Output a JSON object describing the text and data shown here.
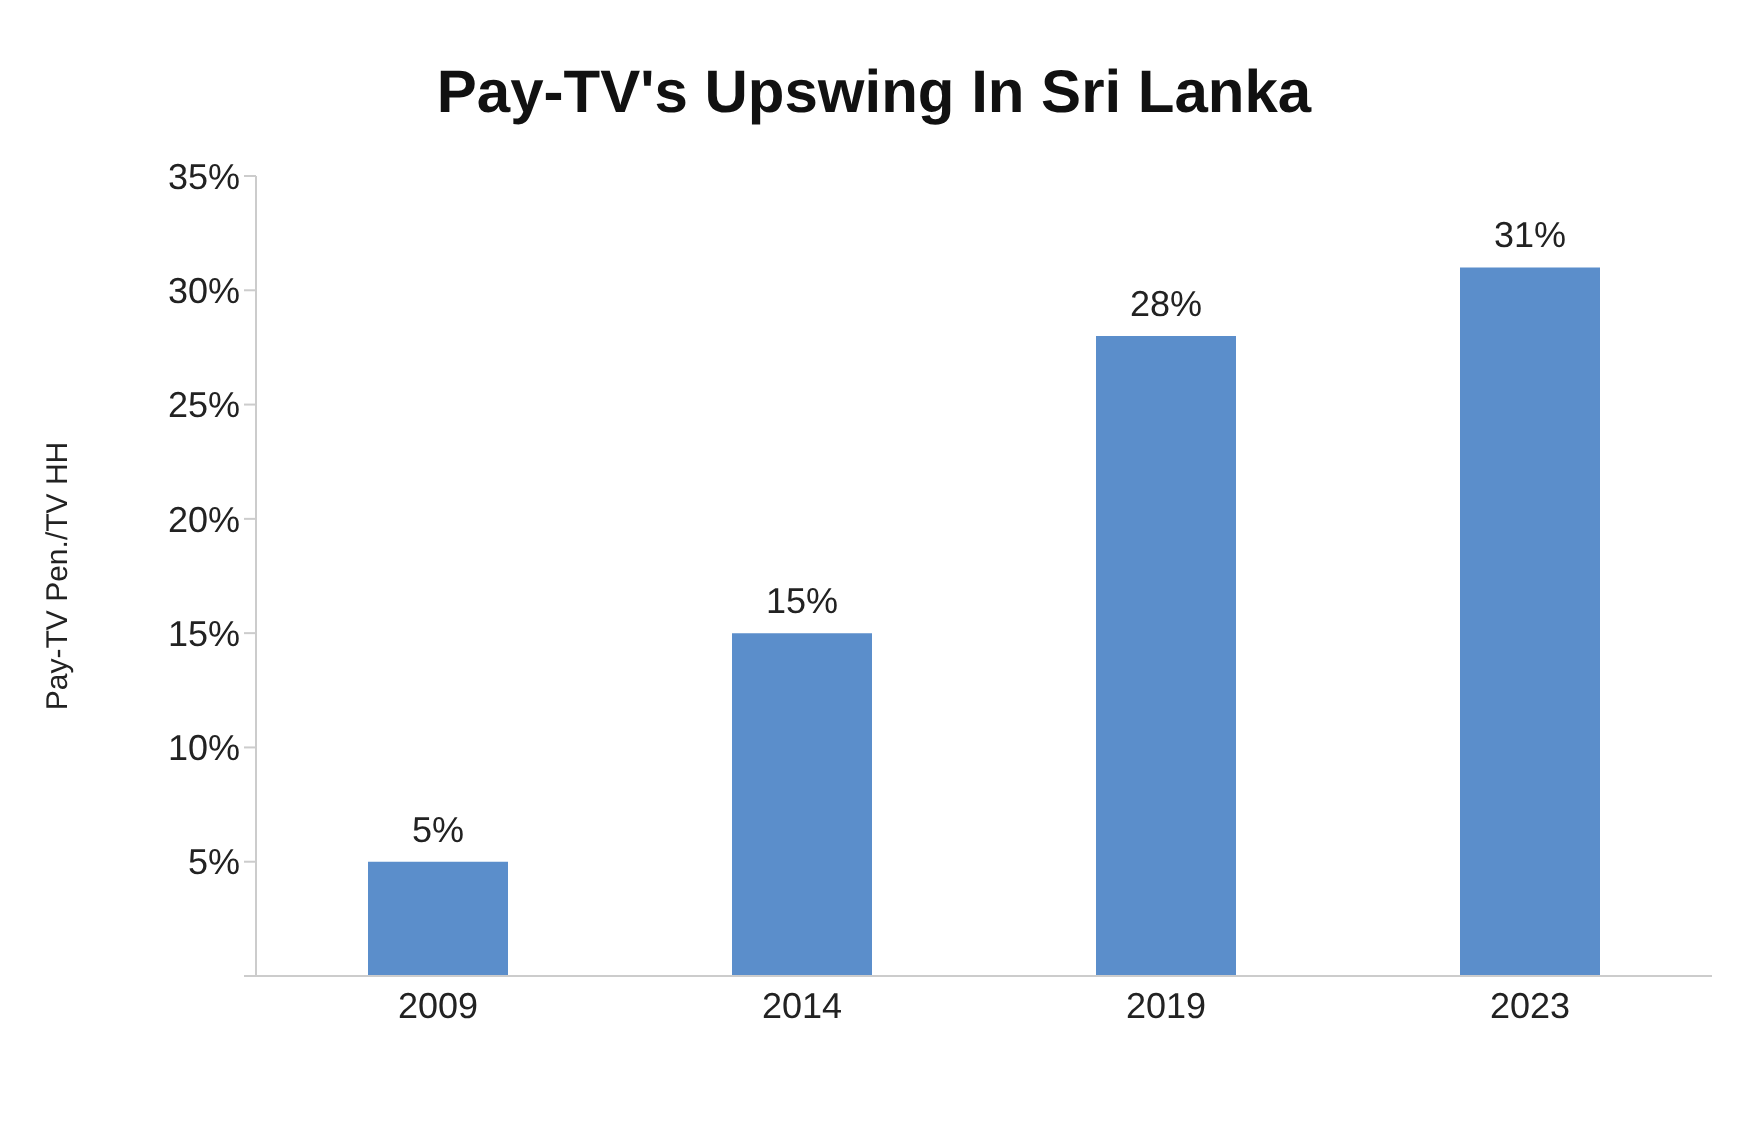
{
  "chart_data": {
    "type": "bar",
    "title": "Pay-TV's Upswing In Sri Lanka",
    "ylabel": "Pay-TV Pen./TV HH",
    "categories": [
      "2009",
      "2014",
      "2019",
      "2023"
    ],
    "values": [
      5,
      15,
      28,
      31
    ],
    "value_labels": [
      "5%",
      "15%",
      "28%",
      "31%"
    ],
    "color": "#5b8ecb",
    "ylim": [
      0,
      35
    ],
    "yticks": [
      {
        "value": 0,
        "label": null
      },
      {
        "value": 5,
        "label": "5%"
      },
      {
        "value": 10,
        "label": "10%"
      },
      {
        "value": 15,
        "label": "15%"
      },
      {
        "value": 20,
        "label": "20%"
      },
      {
        "value": 25,
        "label": "25%"
      },
      {
        "value": 30,
        "label": "30%"
      },
      {
        "value": 35,
        "label": "35%"
      }
    ],
    "grid": false,
    "legend": false
  }
}
